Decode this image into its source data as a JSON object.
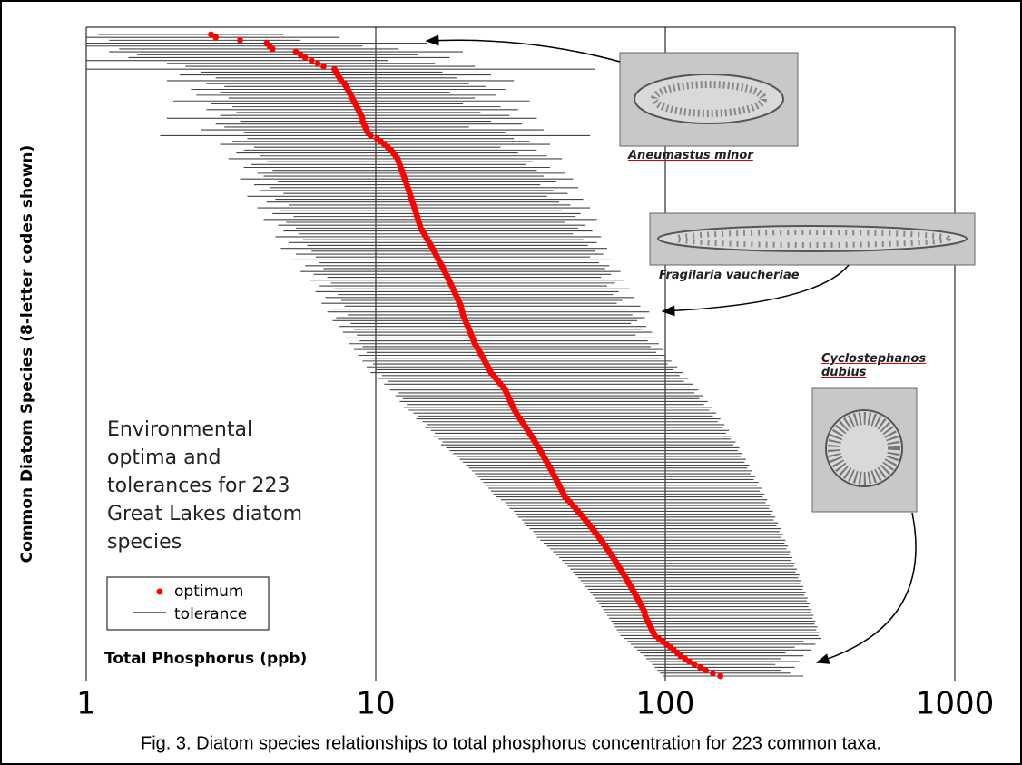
{
  "chart_data": {
    "type": "range_dot",
    "x_label": "Total Phosphorus (ppb)",
    "y_label": "Common Diatom Species (8-letter codes shown)",
    "xlim": [
      1,
      1000
    ],
    "xticks": [
      1,
      10,
      100,
      1000
    ],
    "log_x": true,
    "grid": true,
    "annotation": "Environmental optima and tolerances for 223 Great Lakes diatom species",
    "series": [
      {
        "name": "optimum",
        "color": "#ff0000",
        "values": [
          2.7,
          2.8,
          3.4,
          4.2,
          4.3,
          4.4,
          5.3,
          5.5,
          5.7,
          6.0,
          6.3,
          6.6,
          7.2,
          7.3,
          7.4,
          7.5,
          7.6,
          7.8,
          7.9,
          8.0,
          8.1,
          8.2,
          8.3,
          8.4,
          8.5,
          8.6,
          8.7,
          8.8,
          8.9,
          9.0,
          9.0,
          9.1,
          9.2,
          9.3,
          9.4,
          9.6,
          10.1,
          10.4,
          10.7,
          11.0,
          11.3,
          11.5,
          11.7,
          11.9,
          12.0,
          12.1,
          12.2,
          12.3,
          12.4,
          12.5,
          12.6,
          12.7,
          12.8,
          12.9,
          13.0,
          13.1,
          13.2,
          13.3,
          13.4,
          13.5,
          13.6,
          13.7,
          13.8,
          13.9,
          14.0,
          14.1,
          14.2,
          14.3,
          14.5,
          14.7,
          14.9,
          15.1,
          15.3,
          15.5,
          15.7,
          15.9,
          16.1,
          16.3,
          16.5,
          16.7,
          16.9,
          17.1,
          17.3,
          17.5,
          17.7,
          17.9,
          18.1,
          18.3,
          18.5,
          18.7,
          18.9,
          19.1,
          19.3,
          19.5,
          19.7,
          19.8,
          19.9,
          20.0,
          20.2,
          20.4,
          20.6,
          20.8,
          21.0,
          21.2,
          21.4,
          21.6,
          21.8,
          22.0,
          22.3,
          22.6,
          22.9,
          23.2,
          23.5,
          23.8,
          24.1,
          24.4,
          24.7,
          25.0,
          25.5,
          26.0,
          26.5,
          27.0,
          27.5,
          28.0,
          28.3,
          28.6,
          28.9,
          29.2,
          29.5,
          29.8,
          30.2,
          30.6,
          31.0,
          31.5,
          32.0,
          32.5,
          33.0,
          33.5,
          34.0,
          34.5,
          35.0,
          35.5,
          36.0,
          36.5,
          37.0,
          37.5,
          38,
          38.5,
          39,
          39.5,
          40,
          40.5,
          41,
          41.5,
          42,
          42.5,
          43,
          43.5,
          44,
          44.5,
          45,
          46,
          47,
          48,
          49,
          50,
          51,
          52,
          53,
          54,
          55,
          56,
          57,
          58,
          59,
          60,
          61,
          62,
          63,
          64,
          65,
          66,
          67,
          68,
          69,
          70,
          71,
          72,
          73,
          74,
          75,
          76,
          77,
          78,
          79,
          80,
          81,
          82,
          83,
          84,
          85,
          85,
          86,
          87,
          88,
          89,
          90,
          91,
          92,
          95,
          98,
          101,
          104,
          107,
          110,
          113,
          117,
          121,
          126,
          132,
          138,
          146,
          155
        ]
      },
      {
        "name": "tolerance",
        "color": "#444444",
        "values": [
          [
            1.1,
            4.8
          ],
          [
            1.0,
            7.5
          ],
          [
            1.2,
            5.5
          ],
          [
            1.0,
            15
          ],
          [
            1.0,
            9
          ],
          [
            1.3,
            12
          ],
          [
            1.2,
            20
          ],
          [
            1.5,
            14
          ],
          [
            1.4,
            18
          ],
          [
            1.0,
            11
          ],
          [
            1.9,
            16
          ],
          [
            2.2,
            22
          ],
          [
            1.0,
            57
          ],
          [
            2.5,
            17
          ],
          [
            2.1,
            25
          ],
          [
            2.8,
            19
          ],
          [
            1.9,
            30
          ],
          [
            2.6,
            21
          ],
          [
            3.0,
            24
          ],
          [
            2.3,
            28
          ],
          [
            2.9,
            18
          ],
          [
            2.4,
            26
          ],
          [
            3.1,
            22
          ],
          [
            2.0,
            34
          ],
          [
            2.7,
            20
          ],
          [
            3.2,
            27
          ],
          [
            2.6,
            31
          ],
          [
            3.3,
            23
          ],
          [
            2.9,
            29
          ],
          [
            1.9,
            36
          ],
          [
            3.4,
            25
          ],
          [
            2.8,
            32
          ],
          [
            3.0,
            21
          ],
          [
            2.5,
            38
          ],
          [
            3.5,
            28
          ],
          [
            1.8,
            55
          ],
          [
            3.6,
            30
          ],
          [
            3.2,
            34
          ],
          [
            2.9,
            40
          ],
          [
            3.8,
            27
          ],
          [
            3.5,
            36
          ],
          [
            3.3,
            31
          ],
          [
            4.0,
            39
          ],
          [
            3.1,
            44
          ],
          [
            4.2,
            35
          ],
          [
            3.7,
            33
          ],
          [
            3.5,
            40
          ],
          [
            4.4,
            36
          ],
          [
            3.9,
            45
          ],
          [
            4.1,
            38
          ],
          [
            3.4,
            48
          ],
          [
            4.6,
            42
          ],
          [
            3.8,
            37
          ],
          [
            4.3,
            50
          ],
          [
            4.0,
            41
          ],
          [
            4.8,
            46
          ],
          [
            3.6,
            39
          ],
          [
            4.5,
            52
          ],
          [
            4.2,
            43
          ],
          [
            5.0,
            47
          ],
          [
            3.9,
            55
          ],
          [
            4.7,
            44
          ],
          [
            4.4,
            51
          ],
          [
            5.2,
            49
          ],
          [
            4.1,
            58
          ],
          [
            4.9,
            45
          ],
          [
            4.6,
            53
          ],
          [
            5.3,
            50
          ],
          [
            4.8,
            56
          ],
          [
            5.4,
            48
          ],
          [
            4.5,
            60
          ],
          [
            5.6,
            52
          ],
          [
            5.0,
            58
          ],
          [
            5.8,
            54
          ],
          [
            4.7,
            63
          ],
          [
            6.0,
            57
          ],
          [
            5.3,
            61
          ],
          [
            6.2,
            55
          ],
          [
            5.1,
            66
          ],
          [
            6.4,
            59
          ],
          [
            5.7,
            64
          ],
          [
            6.6,
            62
          ],
          [
            5.5,
            70
          ],
          [
            6.1,
            65
          ],
          [
            6.8,
            60
          ],
          [
            5.9,
            72
          ],
          [
            7.0,
            67
          ],
          [
            6.4,
            63
          ],
          [
            7.2,
            75
          ],
          [
            6.2,
            69
          ],
          [
            7.4,
            66
          ],
          [
            6.7,
            78
          ],
          [
            7.6,
            71
          ],
          [
            6.5,
            68
          ],
          [
            7.8,
            82
          ],
          [
            7.0,
            74
          ],
          [
            6.8,
            88
          ],
          [
            8.0,
            77
          ],
          [
            7.3,
            85
          ],
          [
            7.1,
            80
          ],
          [
            8.2,
            76
          ],
          [
            7.5,
            86
          ],
          [
            8.4,
            83
          ],
          [
            7.7,
            90
          ],
          [
            8.6,
            79
          ],
          [
            7.9,
            92
          ],
          [
            8.8,
            87
          ],
          [
            8.1,
            95
          ],
          [
            9.0,
            89
          ],
          [
            8.4,
            98
          ],
          [
            9.3,
            93
          ],
          [
            8.7,
            100
          ],
          [
            9.6,
            96
          ],
          [
            9.0,
            105
          ],
          [
            9.8,
            102
          ],
          [
            9.3,
            110
          ],
          [
            10,
            106
          ],
          [
            9.6,
            115
          ],
          [
            10.5,
            112
          ],
          [
            10.2,
            120
          ],
          [
            11,
            116
          ],
          [
            10.7,
            125
          ],
          [
            11.5,
            121
          ],
          [
            11.2,
            130
          ],
          [
            12,
            126
          ],
          [
            11.7,
            135
          ],
          [
            12.4,
            131
          ],
          [
            12.1,
            140
          ],
          [
            12.8,
            136
          ],
          [
            12.5,
            145
          ],
          [
            13,
            142
          ],
          [
            13.5,
            150
          ],
          [
            14,
            146
          ],
          [
            13.8,
            155
          ],
          [
            14.5,
            152
          ],
          [
            15,
            160
          ],
          [
            14.8,
            157
          ],
          [
            15.5,
            166
          ],
          [
            16,
            162
          ],
          [
            15.8,
            170
          ],
          [
            16.5,
            168
          ],
          [
            17,
            175
          ],
          [
            16.8,
            172
          ],
          [
            17.5,
            180
          ],
          [
            18,
            178
          ],
          [
            18.5,
            185
          ],
          [
            19,
            182
          ],
          [
            19.5,
            190
          ],
          [
            20,
            188
          ],
          [
            20.5,
            195
          ],
          [
            21,
            192
          ],
          [
            21.5,
            200
          ],
          [
            22,
            197
          ],
          [
            22.5,
            205
          ],
          [
            23,
            202
          ],
          [
            23.5,
            210
          ],
          [
            24,
            207
          ],
          [
            24.5,
            215
          ],
          [
            25,
            212
          ],
          [
            25.5,
            220
          ],
          [
            26,
            217
          ],
          [
            27,
            225
          ],
          [
            28,
            222
          ],
          [
            28.5,
            230
          ],
          [
            29,
            228
          ],
          [
            30,
            235
          ],
          [
            30.5,
            232
          ],
          [
            31,
            240
          ],
          [
            32,
            237
          ],
          [
            32.5,
            245
          ],
          [
            33,
            242
          ],
          [
            34,
            250
          ],
          [
            35,
            248
          ],
          [
            35.5,
            255
          ],
          [
            36,
            252
          ],
          [
            37,
            260
          ],
          [
            38,
            258
          ],
          [
            39,
            265
          ],
          [
            40,
            262
          ],
          [
            41,
            270
          ],
          [
            42,
            268
          ],
          [
            43,
            275
          ],
          [
            44,
            272
          ],
          [
            45,
            280
          ],
          [
            46,
            278
          ],
          [
            47,
            285
          ],
          [
            48,
            282
          ],
          [
            49,
            290
          ],
          [
            50,
            288
          ],
          [
            51,
            295
          ],
          [
            52,
            292
          ],
          [
            53,
            300
          ],
          [
            54,
            298
          ],
          [
            55,
            305
          ],
          [
            56,
            302
          ],
          [
            57,
            310
          ],
          [
            58,
            308
          ],
          [
            59,
            315
          ],
          [
            60,
            312
          ],
          [
            61,
            320
          ],
          [
            62,
            318
          ],
          [
            63,
            325
          ],
          [
            64,
            322
          ],
          [
            65,
            330
          ],
          [
            66,
            328
          ],
          [
            67,
            335
          ],
          [
            68,
            332
          ],
          [
            69,
            340
          ],
          [
            70,
            338
          ],
          [
            72,
            345
          ],
          [
            74,
            300
          ],
          [
            76,
            330
          ],
          [
            78,
            280
          ],
          [
            80,
            320
          ],
          [
            82,
            260
          ],
          [
            84,
            300
          ],
          [
            86,
            250
          ],
          [
            88,
            290
          ],
          [
            90,
            240
          ],
          [
            92,
            280
          ],
          [
            94,
            250
          ],
          [
            96,
            270
          ],
          [
            98,
            300
          ]
        ]
      }
    ]
  },
  "images": [
    {
      "caption": "Aneumastus minor"
    },
    {
      "caption": "Fragilaria vaucheriae"
    },
    {
      "caption": "Cyclostephanos dubius"
    }
  ],
  "caption": "Fig. 3. Diatom species relationships to total phosphorus concentration for 223 common taxa."
}
